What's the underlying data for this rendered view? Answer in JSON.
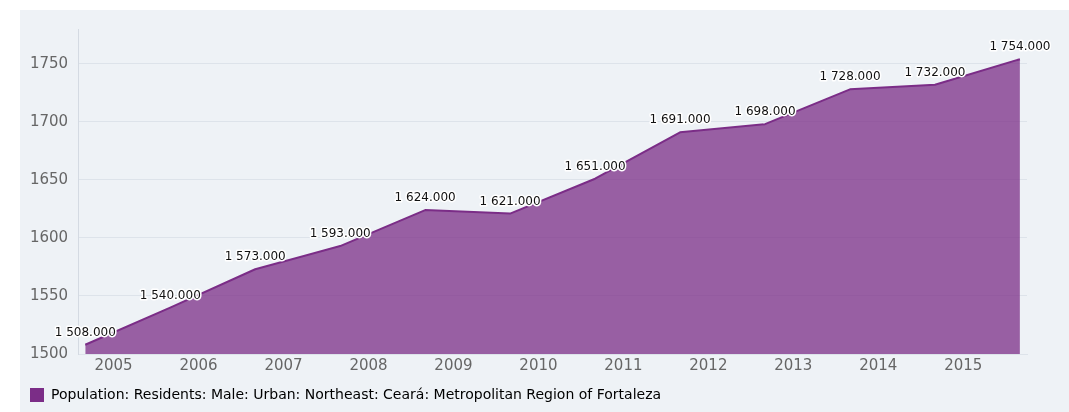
{
  "chart_data": {
    "type": "area",
    "x": [
      "2004-09",
      "2005-09",
      "2006-09",
      "2007-09",
      "2008-09",
      "2009-09",
      "2010-09",
      "2011-09",
      "2012-09",
      "2013-09",
      "2014-09",
      "2015-09"
    ],
    "series": [
      {
        "name": "Population: Residents: Male: Urban: Northeast: Ceará: Metropolitan Region of Fortaleza",
        "color": "#7b2d87",
        "values": [
          1508,
          1540,
          1573,
          1593,
          1624,
          1621,
          1651,
          1691,
          1698,
          1728,
          1732,
          1754
        ],
        "value_labels": [
          "1 508.000",
          "1 540.000",
          "1 573.000",
          "1 593.000",
          "1 624.000",
          "1 621.000",
          "1 651.000",
          "1 691.000",
          "1 698.000",
          "1 728.000",
          "1 732.000",
          "1 754.000"
        ]
      }
    ],
    "xlim": [
      "2004-08",
      "2015-10"
    ],
    "xticks": [
      "2005",
      "2006",
      "2007",
      "2008",
      "2009",
      "2010",
      "2011",
      "2012",
      "2013",
      "2014",
      "2015"
    ],
    "ylim": [
      1500,
      1780
    ],
    "yticks": [
      1500,
      1550,
      1600,
      1650,
      1700,
      1750
    ],
    "grid": "y",
    "legend": "bottom",
    "marker": "none"
  }
}
